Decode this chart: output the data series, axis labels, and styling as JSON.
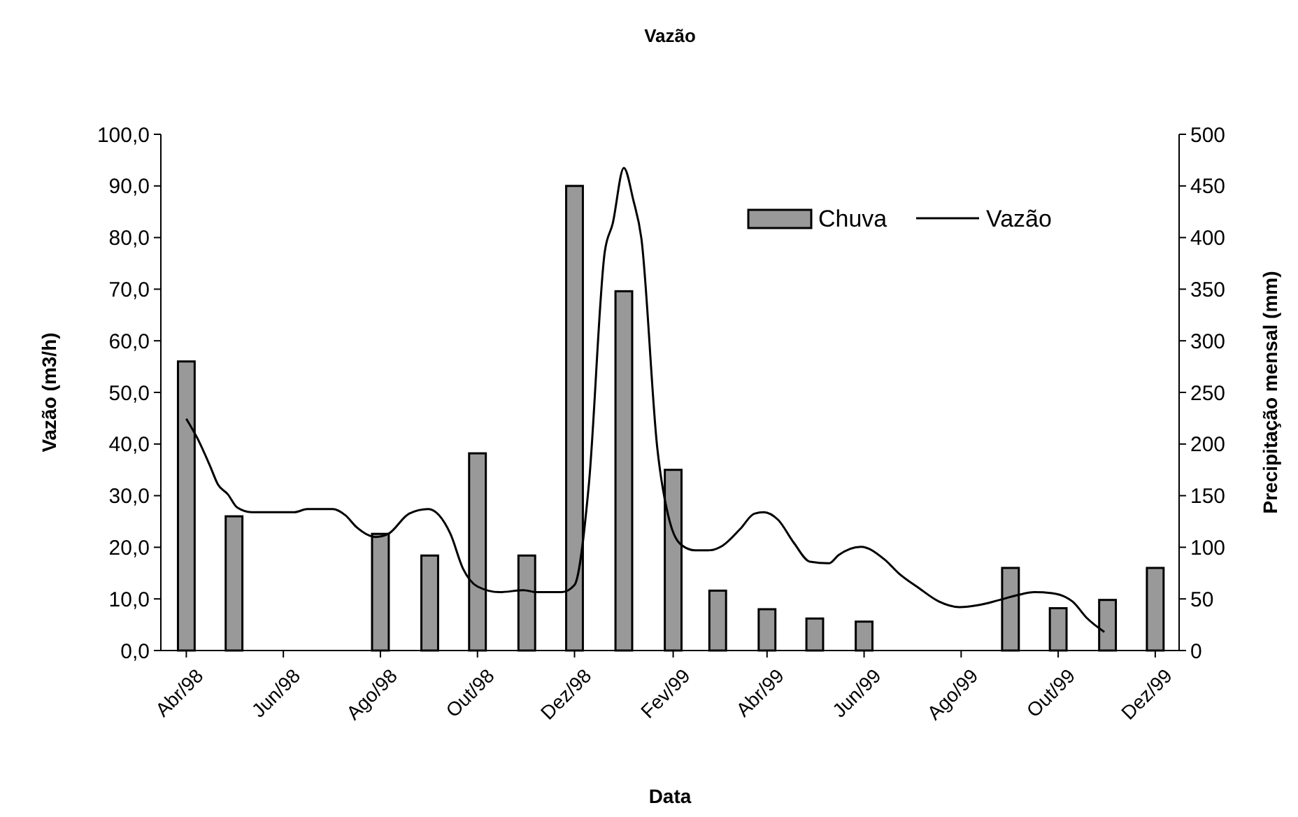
{
  "chart_data": {
    "type": "bar",
    "title": "Vazão",
    "xlabel": "Data",
    "ylabel": "Vazão (m3/h)",
    "y2label": "Precipitação mensal (mm)",
    "x": [
      "1998-04",
      "1998-05",
      "1998-06",
      "1998-07",
      "1998-08",
      "1998-09",
      "1998-10",
      "1998-11",
      "1998-12",
      "1999-01",
      "1999-02",
      "1999-03",
      "1999-04",
      "1999-05",
      "1999-06",
      "1999-07",
      "1999-08",
      "1999-09",
      "1999-10",
      "1999-11",
      "1999-12"
    ],
    "xlim": [
      "1998-03-16",
      "1999-12-16"
    ],
    "xticks": [
      {
        "value": "1998-04",
        "label": "Abr/98"
      },
      {
        "value": "1998-06",
        "label": "Jun/98"
      },
      {
        "value": "1998-08",
        "label": "Ago/98"
      },
      {
        "value": "1998-10",
        "label": "Out/98"
      },
      {
        "value": "1998-12",
        "label": "Dez/98"
      },
      {
        "value": "1999-02",
        "label": "Fev/99"
      },
      {
        "value": "1999-04",
        "label": "Abr/99"
      },
      {
        "value": "1999-06",
        "label": "Jun/99"
      },
      {
        "value": "1999-08",
        "label": "Ago/99"
      },
      {
        "value": "1999-10",
        "label": "Out/99"
      },
      {
        "value": "1999-12",
        "label": "Dez/99"
      }
    ],
    "ylim": [
      0,
      100
    ],
    "yticks": [
      {
        "value": 0,
        "label": "0,0"
      },
      {
        "value": 10,
        "label": "10,0"
      },
      {
        "value": 20,
        "label": "20,0"
      },
      {
        "value": 30,
        "label": "30,0"
      },
      {
        "value": 40,
        "label": "40,0"
      },
      {
        "value": 50,
        "label": "50,0"
      },
      {
        "value": 60,
        "label": "60,0"
      },
      {
        "value": 70,
        "label": "70,0"
      },
      {
        "value": 80,
        "label": "80,0"
      },
      {
        "value": 90,
        "label": "90,0"
      },
      {
        "value": 100,
        "label": "100,0"
      }
    ],
    "y2lim": [
      0,
      500
    ],
    "y2ticks": [
      0,
      50,
      100,
      150,
      200,
      250,
      300,
      350,
      400,
      450,
      500
    ],
    "legend": "top right",
    "grid": false,
    "series": [
      {
        "name": "Chuva",
        "axis": "y2",
        "color": "#999999",
        "values": [
          280,
          130,
          null,
          null,
          113,
          92,
          191,
          92,
          450,
          348,
          175,
          58,
          40,
          31,
          28,
          null,
          null,
          80,
          41,
          49,
          80
        ]
      },
      {
        "name": "Vazão",
        "type": "line",
        "axis": "y",
        "color": "#000000",
        "line_style": "solid",
        "marker": "none",
        "x": [
          "1998-04-01",
          "1998-04-08",
          "1998-04-16",
          "1998-04-21",
          "1998-04-27",
          "1998-05-03",
          "1998-05-12",
          "1998-06-08",
          "1998-06-16",
          "1998-07-02",
          "1998-07-10",
          "1998-07-17",
          "1998-07-29",
          "1998-08-06",
          "1998-08-19",
          "1998-08-31",
          "1998-09-14",
          "1998-09-22",
          "1998-10-01",
          "1998-10-15",
          "1998-10-30",
          "1998-11-07",
          "1998-11-23",
          "1998-12-01",
          "1998-12-10",
          "1998-12-20",
          "1998-12-25",
          "1999-01-01",
          "1999-01-07",
          "1999-01-12",
          "1999-01-22",
          "1999-01-30",
          "1999-02-06",
          "1999-02-15",
          "1999-02-23",
          "1999-03-04",
          "1999-03-15",
          "1999-03-24",
          "1999-03-30",
          "1999-04-08",
          "1999-04-18",
          "1999-04-28",
          "1999-05-10",
          "1999-05-16",
          "1999-05-30",
          "1999-06-14",
          "1999-06-23",
          "1999-07-05",
          "1999-07-18",
          "1999-07-31",
          "1999-08-12",
          "1999-08-24",
          "1999-09-05",
          "1999-09-16",
          "1999-09-27",
          "1999-10-10",
          "1999-10-19",
          "1999-10-30"
        ],
        "values": [
          44.9,
          41.1,
          35.7,
          32.1,
          30.3,
          27.7,
          26.8,
          26.8,
          27.4,
          27.4,
          26.2,
          23.9,
          22,
          22.6,
          26.5,
          27.4,
          22.6,
          15.8,
          12.4,
          11.3,
          11.7,
          11.3,
          11.3,
          12.7,
          32.1,
          77.2,
          82.7,
          93.5,
          87.2,
          79.9,
          39.3,
          24.8,
          20.5,
          19.4,
          19.4,
          20.3,
          23.5,
          26.5,
          26.8,
          25.3,
          20.8,
          17.2,
          16.9,
          18.5,
          20.1,
          17.6,
          14.9,
          12.2,
          9.5,
          8.4,
          8.8,
          9.7,
          10.7,
          11.3,
          11.1,
          9.5,
          6.3,
          3.6
        ]
      }
    ]
  }
}
